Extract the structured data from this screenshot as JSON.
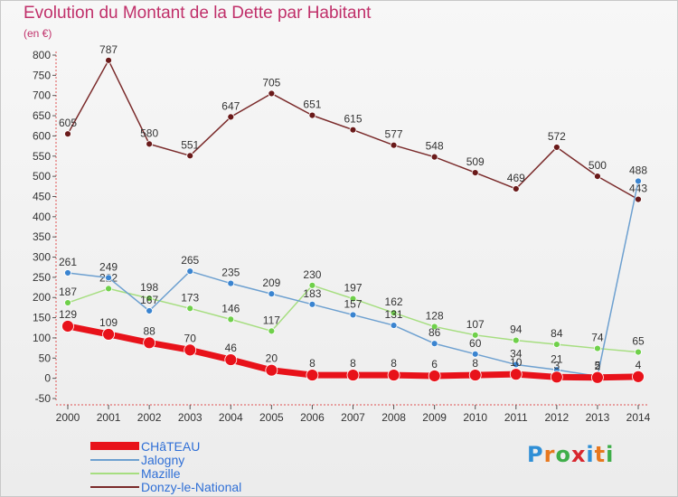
{
  "header": {
    "title": "Evolution du Montant de la Dette par Habitant",
    "unit": "(en €)"
  },
  "logo": {
    "text": "Proxiti",
    "colors": [
      "#2f8fd6",
      "#e8781e",
      "#3fae49",
      "#d8262e",
      "#2f8fd6",
      "#e8781e",
      "#3fae49"
    ]
  },
  "chart_data": {
    "type": "line",
    "x": [
      "2000",
      "2001",
      "2002",
      "2003",
      "2004",
      "2005",
      "2006",
      "2007",
      "2008",
      "2009",
      "2010",
      "2011",
      "2012",
      "2013",
      "2014"
    ],
    "ylim": [
      -50,
      800
    ],
    "yticks": [
      -50,
      0,
      50,
      100,
      150,
      200,
      250,
      300,
      350,
      400,
      450,
      500,
      550,
      600,
      650,
      700,
      750,
      800
    ],
    "grid": false,
    "legend_position": "bottom-left",
    "series": [
      {
        "name": "CHâTEAU",
        "color": "#e8121a",
        "point_color": "#e8121a",
        "width": 7,
        "values": [
          129,
          109,
          88,
          70,
          46,
          20,
          8,
          8,
          8,
          6,
          8,
          10,
          3,
          2,
          4
        ]
      },
      {
        "name": "Jalogny",
        "color": "#6da0d0",
        "point_color": "#3a84d0",
        "width": 1.5,
        "values": [
          261,
          249,
          167,
          265,
          235,
          209,
          183,
          157,
          131,
          86,
          60,
          34,
          21,
          5,
          488
        ]
      },
      {
        "name": "Mazille",
        "color": "#a6de80",
        "point_color": "#6fd04a",
        "width": 1.5,
        "values": [
          187,
          222,
          198,
          173,
          146,
          117,
          230,
          197,
          162,
          128,
          107,
          94,
          84,
          74,
          65
        ]
      },
      {
        "name": "Donzy-le-National",
        "color": "#7a2a2a",
        "point_color": "#6a1a1a",
        "width": 1.5,
        "values": [
          605,
          787,
          580,
          551,
          647,
          705,
          651,
          615,
          577,
          548,
          509,
          469,
          572,
          500,
          443
        ]
      }
    ]
  }
}
